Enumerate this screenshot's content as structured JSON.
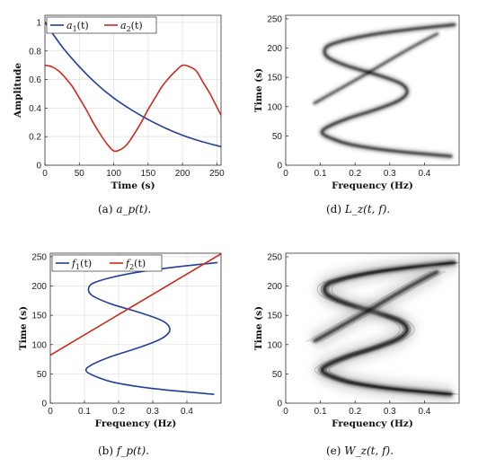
{
  "chart_data": [
    {
      "id": "a",
      "type": "line",
      "caption_label": "(a)",
      "caption_math": "a_p(t).",
      "xlabel": "Time (s)",
      "ylabel": "Amplitude",
      "xlim": [
        0,
        256
      ],
      "ylim": [
        0,
        1.05
      ],
      "xticks": [
        0,
        50,
        100,
        150,
        200,
        250
      ],
      "yticks": [
        0,
        0.2,
        0.4,
        0.6,
        0.8,
        1
      ],
      "ytick_labels": [
        "0",
        "0.2",
        "0.4",
        "0.6",
        "0.8",
        "1"
      ],
      "grid": true,
      "legend": "top-left-horizontal",
      "series": [
        {
          "name": "a1(t)",
          "legend_base": "a",
          "legend_sub": "1",
          "legend_tail": "(t)",
          "color": "#1f3f9a",
          "x": [
            0,
            25,
            50,
            75,
            100,
            125,
            150,
            175,
            200,
            225,
            256
          ],
          "y": [
            1.0,
            0.83,
            0.69,
            0.57,
            0.47,
            0.39,
            0.32,
            0.26,
            0.21,
            0.17,
            0.13
          ]
        },
        {
          "name": "a2(t)",
          "legend_base": "a",
          "legend_sub": "2",
          "legend_tail": "(t)",
          "color": "#cc2a1c",
          "x": [
            0,
            10,
            20,
            30,
            40,
            50,
            60,
            70,
            80,
            90,
            100,
            110,
            120,
            130,
            140,
            150,
            160,
            170,
            180,
            190,
            200,
            210,
            220,
            230,
            240,
            256
          ],
          "y": [
            0.7,
            0.69,
            0.66,
            0.61,
            0.55,
            0.47,
            0.39,
            0.3,
            0.22,
            0.15,
            0.1,
            0.11,
            0.15,
            0.22,
            0.3,
            0.39,
            0.47,
            0.55,
            0.61,
            0.66,
            0.7,
            0.69,
            0.66,
            0.58,
            0.5,
            0.35
          ]
        }
      ]
    },
    {
      "id": "b",
      "type": "line",
      "caption_label": "(b)",
      "caption_math": "f_p(t).",
      "xlabel": "Frequency (Hz)",
      "ylabel": "Time (s)",
      "xlim": [
        0,
        0.5
      ],
      "ylim": [
        0,
        256
      ],
      "xticks": [
        0,
        0.1,
        0.2,
        0.3,
        0.4
      ],
      "xtick_labels": [
        "0",
        "0.1",
        "0.2",
        "0.3",
        "0.4"
      ],
      "yticks": [
        0,
        50,
        100,
        150,
        200,
        250
      ],
      "grid": true,
      "legend": "top-left-horizontal",
      "series": [
        {
          "name": "f1(t)",
          "legend_base": "f",
          "legend_sub": "1",
          "legend_tail": "(t)",
          "color": "#1f3f9a",
          "x": [
            0.48,
            0.3,
            0.19,
            0.135,
            0.105,
            0.12,
            0.18,
            0.26,
            0.325,
            0.35,
            0.33,
            0.26,
            0.175,
            0.12,
            0.115,
            0.15,
            0.24,
            0.36,
            0.49
          ],
          "y": [
            15,
            25,
            35,
            45,
            55,
            65,
            80,
            95,
            110,
            125,
            140,
            155,
            170,
            185,
            200,
            210,
            222,
            232,
            240
          ]
        },
        {
          "name": "f2(t)",
          "legend_base": "f",
          "legend_sub": "2",
          "legend_tail": "(t)",
          "color": "#cc2a1c",
          "x": [
            0,
            0.5
          ],
          "y": [
            82,
            255
          ]
        }
      ]
    },
    {
      "id": "d",
      "type": "heatmap",
      "caption_label": "(d)",
      "caption_math": "L_z(t, f).",
      "xlabel": "Frequency (Hz)",
      "ylabel": "Time (s)",
      "xlim": [
        0,
        0.5
      ],
      "ylim": [
        0,
        256
      ],
      "xticks": [
        0,
        0.1,
        0.2,
        0.3,
        0.4
      ],
      "xtick_labels": [
        "0",
        "0.1",
        "0.2",
        "0.3",
        "0.4"
      ],
      "yticks": [
        0,
        50,
        100,
        150,
        200,
        250
      ],
      "grid": false,
      "ridges": [
        {
          "x": [
            0.48,
            0.3,
            0.19,
            0.135,
            0.105,
            0.12,
            0.18,
            0.26,
            0.325,
            0.35,
            0.33,
            0.26,
            0.175,
            0.12,
            0.115,
            0.15,
            0.24,
            0.36,
            0.49
          ],
          "y": [
            15,
            25,
            35,
            45,
            55,
            65,
            80,
            95,
            110,
            125,
            140,
            155,
            170,
            185,
            200,
            210,
            222,
            232,
            240
          ]
        },
        {
          "x": [
            0.08,
            0.17,
            0.25,
            0.33,
            0.4,
            0.44
          ],
          "y": [
            105,
            135,
            162,
            190,
            213,
            225
          ]
        }
      ]
    },
    {
      "id": "e",
      "type": "heatmap",
      "caption_label": "(e)",
      "caption_math": "W_z(t, f).",
      "xlabel": "Frequency (Hz)",
      "ylabel": "Time (s)",
      "xlim": [
        0,
        0.5
      ],
      "ylim": [
        0,
        256
      ],
      "xticks": [
        0,
        0.1,
        0.2,
        0.3,
        0.4
      ],
      "xtick_labels": [
        "0",
        "0.1",
        "0.2",
        "0.3",
        "0.4"
      ],
      "yticks": [
        0,
        50,
        100,
        150,
        200,
        250
      ],
      "grid": false,
      "ridges": [
        {
          "x": [
            0.48,
            0.3,
            0.19,
            0.135,
            0.105,
            0.12,
            0.18,
            0.26,
            0.325,
            0.35,
            0.33,
            0.26,
            0.175,
            0.12,
            0.115,
            0.15,
            0.24,
            0.36,
            0.49
          ],
          "y": [
            15,
            25,
            35,
            45,
            55,
            65,
            80,
            95,
            110,
            125,
            140,
            155,
            170,
            185,
            200,
            210,
            222,
            232,
            240
          ]
        },
        {
          "x": [
            0.08,
            0.17,
            0.25,
            0.33,
            0.4,
            0.44
          ],
          "y": [
            105,
            135,
            162,
            190,
            213,
            225
          ]
        }
      ]
    }
  ]
}
